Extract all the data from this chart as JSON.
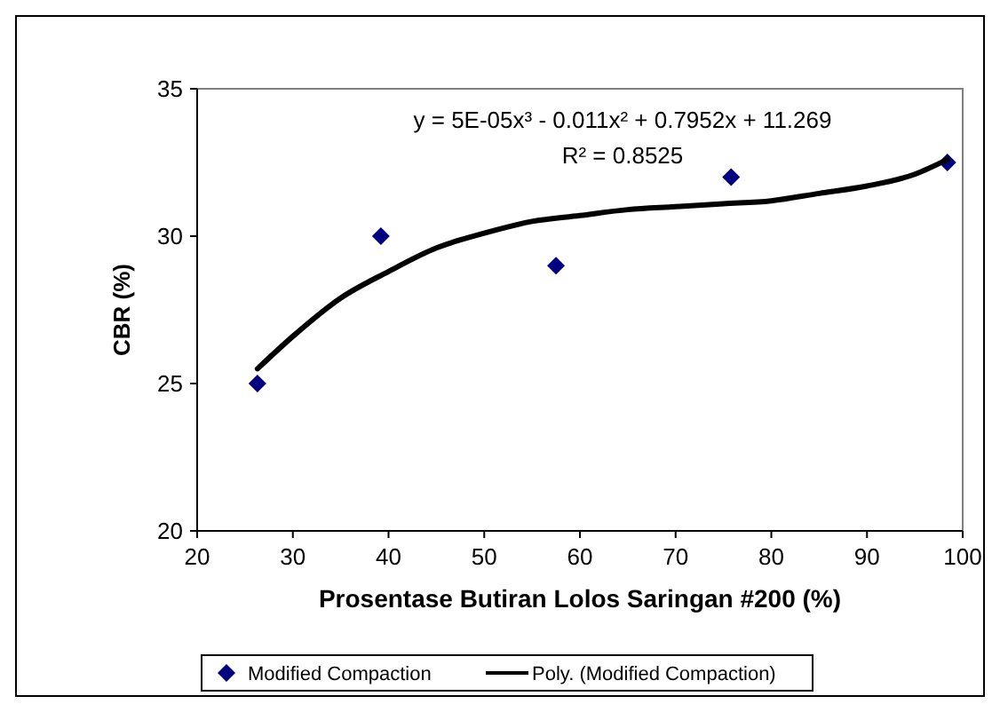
{
  "chart_data": {
    "type": "scatter",
    "xlabel": "Prosentase Butiran Lolos Saringan #200 (%)",
    "ylabel": "CBR (%)",
    "xlim": [
      20,
      100
    ],
    "xticks": [
      20,
      30,
      40,
      50,
      60,
      70,
      80,
      90,
      100
    ],
    "ylim": [
      20,
      35
    ],
    "yticks": [
      20,
      25,
      30,
      35
    ],
    "grid": false,
    "legend": "bottom",
    "marker": "diamond",
    "annotations": [
      "y = 5E-05x³ - 0.011x² + 0.7952x + 11.269",
      "R² = 0.8525"
    ],
    "series": [
      {
        "name": "Modified Compaction",
        "color": "#000080",
        "x": [
          26.3,
          39.2,
          57.5,
          75.8,
          98.4
        ],
        "values": [
          25,
          30,
          29,
          32,
          32.5
        ]
      },
      {
        "name": "Poly. (Modified Compaction)",
        "type": "line",
        "color": "#000000",
        "marker": "none",
        "line_style": "solid",
        "x": [
          26.3,
          30,
          35,
          40,
          45,
          50,
          55,
          60,
          65,
          70,
          75,
          80,
          85,
          90,
          95,
          98.4
        ],
        "values": [
          25.5,
          26.6,
          27.9,
          28.8,
          29.6,
          30.1,
          30.5,
          30.7,
          30.9,
          31.0,
          31.1,
          31.2,
          31.45,
          31.7,
          32.1,
          32.6
        ]
      }
    ]
  }
}
